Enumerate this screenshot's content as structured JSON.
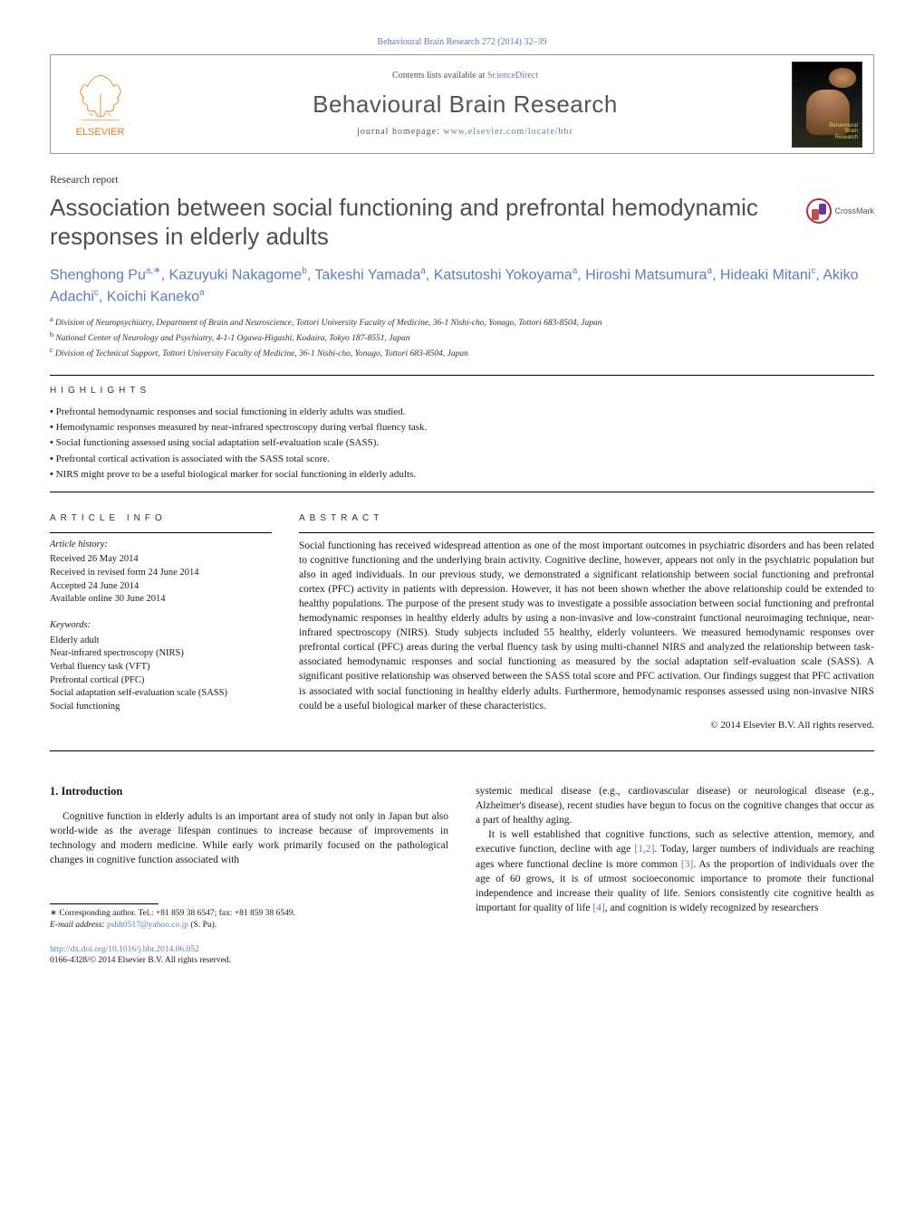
{
  "header": {
    "citation_link": "Behavioural Brain Research 272 (2014) 32–39",
    "contents_prefix": "Contents lists available at ",
    "contents_link": "ScienceDirect",
    "journal_name": "Behavioural Brain Research",
    "homepage_prefix": "journal homepage: ",
    "homepage_link": "www.elsevier.com/locate/bbr",
    "elsevier_label": "ELSEVIER",
    "cover_title_line1": "Behavioural",
    "cover_title_line2": "Brain",
    "cover_title_line3": "Research"
  },
  "crossmark_label": "CrossMark",
  "article_type": "Research report",
  "title": "Association between social functioning and prefrontal hemodynamic responses in elderly adults",
  "authors_html": "Shenghong Pu<sup>a,</sup><span class='corr'><sup>∗</sup></span>, Kazuyuki Nakagome<sup>b</sup>, Takeshi Yamada<sup>a</sup>, Katsutoshi Yokoyama<sup>a</sup>, Hiroshi Matsumura<sup>a</sup>, Hideaki Mitani<sup>c</sup>, Akiko Adachi<sup>c</sup>, Koichi Kaneko<sup>a</sup>",
  "affiliations": [
    {
      "key": "a",
      "text": "Division of Neuropsychiatry, Department of Brain and Neuroscience, Tottori University Faculty of Medicine, 36-1 Nishi-cho, Yonago, Tottori 683-8504, Japan"
    },
    {
      "key": "b",
      "text": "National Center of Neurology and Psychiatry, 4-1-1 Ogawa-Higashi, Kodaira, Tokyo 187-8551, Japan"
    },
    {
      "key": "c",
      "text": "Division of Technical Support, Tottori University Faculty of Medicine, 36-1 Nishi-cho, Yonago, Tottori 683-8504, Japan"
    }
  ],
  "highlights_label": "HIGHLIGHTS",
  "highlights": [
    "Prefrontal hemodynamic responses and social functioning in elderly adults was studied.",
    "Hemodynamic responses measured by near-infrared spectroscopy during verbal fluency task.",
    "Social functioning assessed using social adaptation self-evaluation scale (SASS).",
    "Prefrontal cortical activation is associated with the SASS total score.",
    "NIRS might prove to be a useful biological marker for social functioning in elderly adults."
  ],
  "article_info": {
    "label": "ARTICLE INFO",
    "history_label": "Article history:",
    "history": [
      "Received 26 May 2014",
      "Received in revised form 24 June 2014",
      "Accepted 24 June 2014",
      "Available online 30 June 2014"
    ],
    "keywords_label": "Keywords:",
    "keywords": [
      "Elderly adult",
      "Near-infrared spectroscopy (NIRS)",
      "Verbal fluency task (VFT)",
      "Prefrontal cortical (PFC)",
      "Social adaptation self-evaluation scale (SASS)",
      "Social functioning"
    ]
  },
  "abstract": {
    "label": "ABSTRACT",
    "text": "Social functioning has received widespread attention as one of the most important outcomes in psychiatric disorders and has been related to cognitive functioning and the underlying brain activity. Cognitive decline, however, appears not only in the psychiatric population but also in aged individuals. In our previous study, we demonstrated a significant relationship between social functioning and prefrontal cortex (PFC) activity in patients with depression. However, it has not been shown whether the above relationship could be extended to healthy populations. The purpose of the present study was to investigate a possible association between social functioning and prefrontal hemodynamic responses in healthy elderly adults by using a non-invasive and low-constraint functional neuroimaging technique, near-infrared spectroscopy (NIRS). Study subjects included 55 healthy, elderly volunteers. We measured hemodynamic responses over prefrontal cortical (PFC) areas during the verbal fluency task by using multi-channel NIRS and analyzed the relationship between task-associated hemodynamic responses and social functioning as measured by the social adaptation self-evaluation scale (SASS). A significant positive relationship was observed between the SASS total score and PFC activation. Our findings suggest that PFC activation is associated with social functioning in healthy elderly adults. Furthermore, hemodynamic responses assessed using non-invasive NIRS could be a useful biological marker of these characteristics.",
    "copyright": "© 2014 Elsevier B.V. All rights reserved."
  },
  "body": {
    "heading": "1. Introduction",
    "left_para": "Cognitive function in elderly adults is an important area of study not only in Japan but also world-wide as the average lifespan continues to increase because of improvements in technology and modern medicine. While early work primarily focused on the pathological changes in cognitive function associated with",
    "right_para1_pre": "systemic medical disease (e.g., cardiovascular disease) or neurological disease (e.g., Alzheimer's disease), recent studies have begun to focus on the cognitive changes that occur as a part of healthy aging.",
    "right_para2_part1": "It is well established that cognitive functions, such as selective attention, memory, and executive function, decline with age ",
    "ref12": "[1,2]",
    "right_para2_part2": ". Today, larger numbers of individuals are reaching ages where functional decline is more common ",
    "ref3": "[3]",
    "right_para2_part3": ". As the proportion of individuals over the age of 60 grows, it is of utmost socioeconomic importance to promote their functional independence and increase their quality of life. Seniors consistently cite cognitive health as important for quality of life ",
    "ref4": "[4]",
    "right_para2_part4": ", and cognition is widely recognized by researchers"
  },
  "footnotes": {
    "corr_label": "∗ Corresponding author. Tel.: +81 859 38 6547; fax: +81 859 38 6549.",
    "email_label": "E-mail address: ",
    "email": "pshh0517@yahoo.co.jp",
    "email_owner": " (S. Pu)."
  },
  "doi": {
    "url": "http://dx.doi.org/10.1016/j.bbr.2014.06.052",
    "issn_line": "0166-4328/© 2014 Elsevier B.V. All rights reserved."
  },
  "colors": {
    "link": "#5a7fb8",
    "elsevier_orange": "#e67817",
    "text": "#1a1a1a",
    "gray_heading": "#4e4e4e"
  }
}
